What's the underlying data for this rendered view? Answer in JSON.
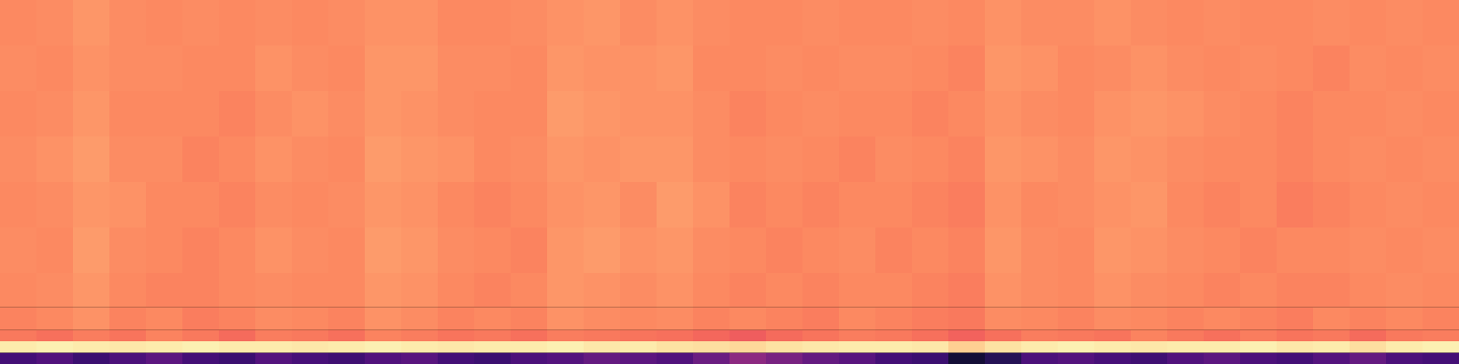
{
  "chart_data": {
    "type": "heatmap",
    "tick_labels": false,
    "color": "magma",
    "color_range": [
      0,
      1
    ],
    "x_edges": [
      0,
      1,
      2,
      3,
      4,
      5,
      6,
      7,
      8,
      9,
      10,
      11,
      12,
      13,
      14,
      15,
      16,
      17,
      18,
      19,
      20,
      21,
      22,
      23,
      24,
      25,
      26,
      27,
      28,
      29,
      30,
      31,
      32,
      33,
      34,
      35,
      36,
      37,
      38,
      39,
      40
    ],
    "y_edges": [
      0,
      1,
      2,
      3,
      5,
      8,
      12,
      16,
      20,
      24,
      28,
      32
    ],
    "cells": [
      [
        0.22,
        0.25,
        0.2,
        0.24,
        0.28,
        0.22,
        0.2,
        0.26,
        0.23,
        0.21,
        0.25,
        0.27,
        0.22,
        0.2,
        0.24,
        0.26,
        0.3,
        0.28,
        0.25,
        0.32,
        0.4,
        0.35,
        0.3,
        0.27,
        0.22,
        0.2,
        0.1,
        0.15,
        0.24,
        0.26,
        0.23,
        0.21,
        0.25,
        0.28,
        0.24,
        0.22,
        0.26,
        0.3,
        0.24,
        0.22
      ],
      [
        0.96,
        0.97,
        0.96,
        0.95,
        0.96,
        0.97,
        0.96,
        0.96,
        0.95,
        0.96,
        0.97,
        0.96,
        0.95,
        0.96,
        0.96,
        0.97,
        0.95,
        0.96,
        0.94,
        0.93,
        0.92,
        0.94,
        0.95,
        0.96,
        0.96,
        0.95,
        0.9,
        0.94,
        0.96,
        0.97,
        0.96,
        0.95,
        0.96,
        0.96,
        0.97,
        0.95,
        0.96,
        0.93,
        0.96,
        0.97
      ],
      [
        0.72,
        0.7,
        0.73,
        0.71,
        0.74,
        0.72,
        0.69,
        0.73,
        0.72,
        0.7,
        0.74,
        0.73,
        0.71,
        0.72,
        0.7,
        0.73,
        0.72,
        0.71,
        0.7,
        0.68,
        0.66,
        0.69,
        0.71,
        0.73,
        0.72,
        0.7,
        0.67,
        0.7,
        0.73,
        0.72,
        0.71,
        0.74,
        0.72,
        0.7,
        0.73,
        0.71,
        0.72,
        0.69,
        0.72,
        0.73
      ],
      [
        0.74,
        0.75,
        0.77,
        0.74,
        0.75,
        0.73,
        0.74,
        0.76,
        0.75,
        0.74,
        0.77,
        0.76,
        0.74,
        0.75,
        0.74,
        0.77,
        0.76,
        0.75,
        0.76,
        0.74,
        0.75,
        0.74,
        0.73,
        0.75,
        0.74,
        0.73,
        0.72,
        0.76,
        0.75,
        0.74,
        0.76,
        0.75,
        0.74,
        0.75,
        0.74,
        0.73,
        0.75,
        0.74,
        0.75,
        0.74
      ],
      [
        0.75,
        0.76,
        0.78,
        0.75,
        0.74,
        0.74,
        0.75,
        0.76,
        0.75,
        0.75,
        0.78,
        0.77,
        0.75,
        0.74,
        0.75,
        0.78,
        0.77,
        0.76,
        0.77,
        0.75,
        0.74,
        0.75,
        0.74,
        0.75,
        0.75,
        0.74,
        0.73,
        0.77,
        0.76,
        0.75,
        0.77,
        0.76,
        0.75,
        0.74,
        0.75,
        0.74,
        0.74,
        0.75,
        0.76,
        0.75
      ],
      [
        0.76,
        0.75,
        0.79,
        0.76,
        0.75,
        0.74,
        0.75,
        0.77,
        0.76,
        0.75,
        0.79,
        0.78,
        0.76,
        0.75,
        0.74,
        0.78,
        0.79,
        0.77,
        0.78,
        0.76,
        0.75,
        0.74,
        0.75,
        0.76,
        0.74,
        0.75,
        0.74,
        0.78,
        0.76,
        0.75,
        0.78,
        0.77,
        0.76,
        0.75,
        0.74,
        0.75,
        0.75,
        0.76,
        0.75,
        0.76
      ],
      [
        0.75,
        0.76,
        0.78,
        0.77,
        0.75,
        0.75,
        0.74,
        0.76,
        0.75,
        0.76,
        0.78,
        0.77,
        0.75,
        0.74,
        0.75,
        0.77,
        0.78,
        0.76,
        0.79,
        0.77,
        0.74,
        0.75,
        0.74,
        0.75,
        0.75,
        0.74,
        0.73,
        0.77,
        0.75,
        0.76,
        0.77,
        0.78,
        0.75,
        0.74,
        0.75,
        0.73,
        0.74,
        0.75,
        0.76,
        0.75
      ],
      [
        0.76,
        0.77,
        0.79,
        0.76,
        0.76,
        0.74,
        0.75,
        0.77,
        0.76,
        0.75,
        0.79,
        0.78,
        0.77,
        0.75,
        0.76,
        0.78,
        0.77,
        0.78,
        0.78,
        0.76,
        0.75,
        0.76,
        0.75,
        0.74,
        0.76,
        0.75,
        0.74,
        0.78,
        0.77,
        0.76,
        0.78,
        0.77,
        0.76,
        0.75,
        0.75,
        0.74,
        0.75,
        0.76,
        0.75,
        0.76
      ],
      [
        0.75,
        0.76,
        0.78,
        0.75,
        0.75,
        0.75,
        0.74,
        0.76,
        0.77,
        0.76,
        0.78,
        0.77,
        0.76,
        0.75,
        0.75,
        0.79,
        0.78,
        0.77,
        0.77,
        0.76,
        0.74,
        0.75,
        0.76,
        0.75,
        0.75,
        0.74,
        0.75,
        0.77,
        0.76,
        0.75,
        0.77,
        0.78,
        0.77,
        0.76,
        0.75,
        0.74,
        0.75,
        0.75,
        0.76,
        0.75
      ],
      [
        0.76,
        0.75,
        0.77,
        0.76,
        0.76,
        0.75,
        0.75,
        0.77,
        0.76,
        0.75,
        0.78,
        0.78,
        0.76,
        0.76,
        0.75,
        0.78,
        0.77,
        0.77,
        0.78,
        0.75,
        0.75,
        0.76,
        0.75,
        0.76,
        0.76,
        0.75,
        0.74,
        0.78,
        0.77,
        0.75,
        0.76,
        0.77,
        0.76,
        0.75,
        0.76,
        0.75,
        0.74,
        0.76,
        0.75,
        0.76
      ],
      [
        0.75,
        0.76,
        0.78,
        0.76,
        0.75,
        0.76,
        0.75,
        0.76,
        0.75,
        0.76,
        0.77,
        0.77,
        0.75,
        0.75,
        0.76,
        0.77,
        0.78,
        0.76,
        0.77,
        0.76,
        0.75,
        0.75,
        0.76,
        0.75,
        0.75,
        0.76,
        0.75,
        0.77,
        0.76,
        0.76,
        0.77,
        0.76,
        0.75,
        0.76,
        0.75,
        0.75,
        0.76,
        0.75,
        0.76,
        0.75
      ]
    ]
  }
}
